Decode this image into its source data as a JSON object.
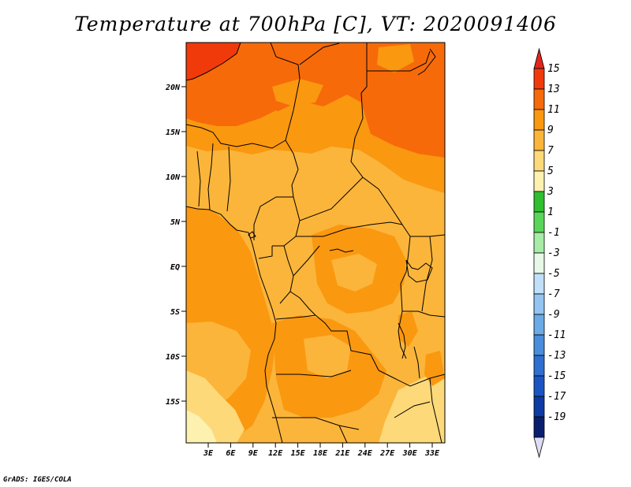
{
  "title": "Temperature at 700hPa [C], VT: 2020091406",
  "credit": "GrADS: IGES/COLA",
  "map": {
    "lat_labels": [
      "20N",
      "15N",
      "10N",
      "5N",
      "EQ",
      "5S",
      "10S",
      "15S"
    ],
    "lon_labels": [
      "3E",
      "6E",
      "9E",
      "12E",
      "15E",
      "18E",
      "21E",
      "24E",
      "27E",
      "30E",
      "33E"
    ],
    "region": "Central Africa",
    "variable": "Temperature",
    "level": "700hPa",
    "units": "C",
    "valid_time": "2020091406"
  },
  "colorbar": {
    "labels": [
      "15",
      "13",
      "11",
      "9",
      "7",
      "5",
      "3",
      "1",
      "-1",
      "-3",
      "-5",
      "-7",
      "-9",
      "-11",
      "-13",
      "-15",
      "-17",
      "-19"
    ],
    "colors": [
      "#f03a0a",
      "#f66a0a",
      "#fa9810",
      "#fbb53a",
      "#fdd97a",
      "#fdf1b0",
      "#2fbf2f",
      "#59d659",
      "#a6eca6",
      "#e8f8e8",
      "#bfe0f8",
      "#93c5f0",
      "#6aaae6",
      "#4a8ddc",
      "#2f6fcf",
      "#1b55c2",
      "#0d3aa3",
      "#0a1e6e"
    ],
    "over_color": "#e0261a",
    "under_color": "#ddddf5"
  }
}
